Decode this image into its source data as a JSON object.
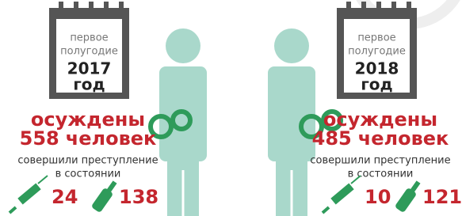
{
  "panels": [
    {
      "period_line1": "первое",
      "period_line2": "полугодие",
      "year": "2017",
      "year_word": "год",
      "convicted_label": "осуждены",
      "convicted_count": 558,
      "convicted_unit": "человек",
      "note_line1": "совершили преступление",
      "note_line2": "в состоянии",
      "drug_count": 24,
      "alcohol_count": 138
    },
    {
      "period_line1": "первое",
      "period_line2": "полугодие",
      "year": "2018",
      "year_word": "год",
      "convicted_label": "осуждены",
      "convicted_count": 485,
      "convicted_unit": "человек",
      "note_line1": "совершили преступление",
      "note_line2": "в состоянии",
      "drug_count": 10,
      "alcohol_count": 121
    }
  ]
}
